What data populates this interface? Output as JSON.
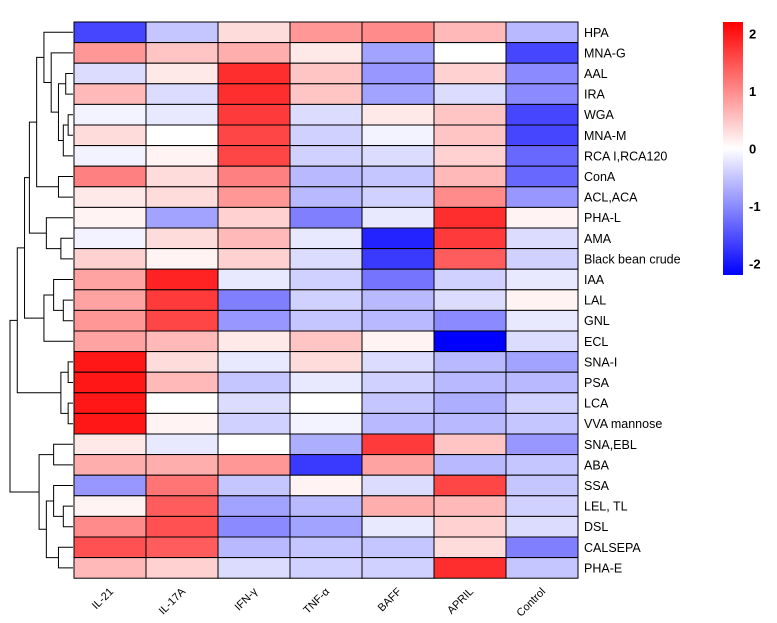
{
  "chart_data": {
    "type": "heatmap",
    "title": "",
    "xlabel": "",
    "ylabel": "",
    "columns": [
      "IL-21",
      "IL-17A",
      "IFN-γ",
      "TNF-α",
      "BAFF",
      "APRIL",
      "Control"
    ],
    "rows": [
      "HPA",
      "MNA-G",
      "AAL",
      "IRA",
      "WGA",
      "MNA-M",
      "RCA I,RCA120",
      "ConA",
      "ACL,ACA",
      "PHA-L",
      "AMA",
      "Black bean crude",
      "IAA",
      "LAL",
      "GNL",
      "ECL",
      "SNA-I",
      "PSA",
      "LCA",
      "VVA mannose",
      "SNA,EBL",
      "ABA",
      "SSA",
      "LEL, TL",
      "DSL",
      "CALSEPA",
      "PHA-E"
    ],
    "values": [
      [
        -1.6,
        -0.5,
        0.3,
        0.9,
        1.0,
        0.6,
        -0.6
      ],
      [
        0.9,
        0.5,
        0.7,
        0.2,
        -0.8,
        0.0,
        -1.6
      ],
      [
        -0.3,
        0.2,
        1.8,
        0.5,
        -0.9,
        0.4,
        -1.0
      ],
      [
        0.6,
        -0.3,
        1.8,
        0.5,
        -0.8,
        -0.3,
        -1.0
      ],
      [
        -0.1,
        -0.2,
        1.7,
        -0.3,
        0.2,
        0.5,
        -1.6
      ],
      [
        0.3,
        0.0,
        1.6,
        -0.4,
        -0.1,
        0.5,
        -1.6
      ],
      [
        -0.1,
        0.1,
        1.6,
        -0.4,
        -0.3,
        0.4,
        -1.3
      ],
      [
        1.1,
        0.3,
        1.1,
        -0.6,
        -0.5,
        0.6,
        -1.3
      ],
      [
        0.2,
        0.3,
        0.9,
        -0.6,
        -0.4,
        1.0,
        -0.9
      ],
      [
        0.1,
        -0.8,
        0.4,
        -1.1,
        -0.2,
        1.8,
        0.1
      ],
      [
        -0.1,
        0.3,
        0.6,
        -0.2,
        -1.9,
        1.7,
        -0.3
      ],
      [
        0.4,
        0.1,
        0.4,
        -0.3,
        -1.7,
        1.4,
        -0.4
      ],
      [
        0.8,
        1.9,
        -0.2,
        -0.4,
        -1.2,
        -0.4,
        -0.2
      ],
      [
        0.8,
        1.7,
        -1.1,
        -0.4,
        -0.6,
        -0.3,
        0.1
      ],
      [
        0.9,
        1.6,
        -0.9,
        -0.5,
        -0.6,
        -1.0,
        -0.2
      ],
      [
        0.8,
        0.6,
        0.2,
        0.5,
        0.1,
        -2.2,
        -0.3
      ],
      [
        2.0,
        0.3,
        -0.2,
        0.3,
        -0.3,
        -0.6,
        -0.8
      ],
      [
        2.0,
        0.6,
        -0.5,
        -0.2,
        -0.4,
        -0.6,
        -0.6
      ],
      [
        2.0,
        0.0,
        -0.3,
        0.0,
        -0.5,
        -0.7,
        -0.4
      ],
      [
        2.0,
        0.1,
        -0.4,
        -0.1,
        -0.6,
        -0.6,
        -0.5
      ],
      [
        0.2,
        -0.2,
        0.0,
        -0.7,
        1.7,
        0.5,
        -0.9
      ],
      [
        0.7,
        0.7,
        0.9,
        -1.7,
        0.8,
        -0.6,
        -0.5
      ],
      [
        -0.9,
        1.2,
        -0.5,
        0.1,
        -0.3,
        1.6,
        -0.5
      ],
      [
        0.1,
        1.4,
        -0.8,
        -0.6,
        0.7,
        0.6,
        -0.4
      ],
      [
        1.0,
        1.5,
        -1.0,
        -0.8,
        -0.2,
        0.4,
        -0.3
      ],
      [
        1.5,
        1.4,
        -0.6,
        -0.5,
        -0.5,
        0.3,
        -1.1
      ],
      [
        0.6,
        0.4,
        -0.3,
        -0.4,
        -0.4,
        1.8,
        -0.5
      ]
    ],
    "color_scale": {
      "min": -2.2,
      "max": 2.2,
      "low": "#0000ff",
      "mid": "#ffffff",
      "high": "#ff0000",
      "ticks": [
        2,
        1,
        0,
        -1,
        -2
      ],
      "tick_labels": [
        "2",
        "1",
        "0",
        "-1",
        "-2"
      ]
    },
    "row_dendrogram": true,
    "grid": true,
    "legend": "top-right"
  }
}
